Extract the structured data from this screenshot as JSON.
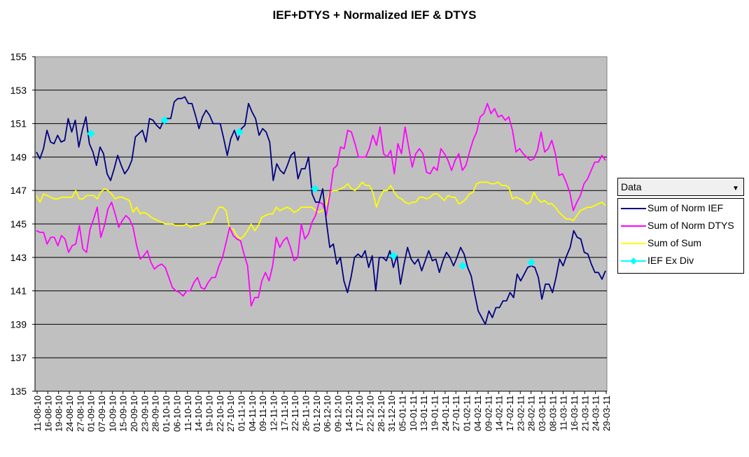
{
  "title": "IEF+DTYS + Normalized IEF & DTYS",
  "legend": {
    "dropdown_label": "Data",
    "items": [
      {
        "label": "Sum of Norm IEF",
        "color": "#000080",
        "marker": "none"
      },
      {
        "label": "Sum of Norm DTYS",
        "color": "#ff00ff",
        "marker": "none"
      },
      {
        "label": "Sum of Sum",
        "color": "#ffff00",
        "marker": "none"
      },
      {
        "label": "IEF Ex Div",
        "color": "#00ffff",
        "marker": "diamond"
      }
    ]
  },
  "chart_data": {
    "type": "line",
    "title": "IEF+DTYS + Normalized IEF & DTYS",
    "xlabel": "",
    "ylabel": "",
    "ylim": [
      135,
      155
    ],
    "yticks": [
      135,
      137,
      139,
      141,
      143,
      145,
      147,
      149,
      151,
      153,
      155
    ],
    "grid": true,
    "legend_position": "right",
    "plot_background": "#c0c0c0",
    "x_tick_labels": [
      "11-08-10",
      "16-08-10",
      "19-08-10",
      "24-08-10",
      "27-08-10",
      "01-09-10",
      "07-09-10",
      "10-09-10",
      "15-09-10",
      "20-09-10",
      "23-09-10",
      "28-09-10",
      "01-10-10",
      "06-10-10",
      "11-10-10",
      "14-10-10",
      "19-10-10",
      "22-10-10",
      "27-10-10",
      "01-11-10",
      "04-11-10",
      "09-11-10",
      "12-11-10",
      "17-11-10",
      "22-11-10",
      "26-11-10",
      "01-12-10",
      "06-12-10",
      "09-12-10",
      "14-12-10",
      "17-12-10",
      "22-12-10",
      "28-12-10",
      "31-12-10",
      "05-01-11",
      "10-01-11",
      "13-01-11",
      "19-01-11",
      "24-01-11",
      "27-01-11",
      "01-02-11",
      "04-02-11",
      "09-02-11",
      "14-02-11",
      "17-02-11",
      "23-02-11",
      "28-02-11",
      "03-03-11",
      "08-03-11",
      "11-03-11",
      "16-03-11",
      "21-03-11",
      "24-03-11",
      "29-03-11"
    ],
    "series": [
      {
        "name": "Sum of Norm IEF",
        "color": "#000080",
        "values": [
          149.3,
          148.9,
          149.5,
          150.6,
          149.9,
          149.8,
          150.3,
          149.9,
          150.0,
          151.3,
          150.5,
          151.2,
          149.6,
          150.6,
          151.4,
          149.8,
          149.3,
          148.5,
          149.6,
          149.2,
          148.0,
          147.6,
          148.3,
          149.1,
          148.5,
          148.0,
          148.3,
          148.8,
          150.2,
          150.4,
          150.6,
          149.9,
          151.3,
          151.2,
          150.9,
          150.7,
          151.2,
          151.3,
          151.3,
          152.3,
          152.5,
          152.5,
          152.6,
          152.2,
          152.2,
          151.5,
          150.7,
          151.4,
          151.8,
          151.5,
          151.0,
          151.0,
          151.0,
          150.1,
          149.1,
          150.1,
          150.6,
          150.0,
          150.7,
          150.9,
          152.2,
          151.7,
          151.3,
          150.3,
          150.7,
          150.5,
          149.9,
          147.6,
          148.6,
          148.2,
          148.0,
          148.5,
          149.1,
          149.3,
          147.7,
          148.3,
          148.3,
          149.0,
          146.8,
          146.3,
          146.3,
          147.1,
          145.2,
          143.6,
          143.8,
          142.6,
          143.0,
          141.6,
          140.9,
          141.8,
          143.0,
          143.2,
          143.0,
          143.4,
          142.4,
          143.1,
          141.0,
          143.0,
          143.0,
          142.8,
          143.4,
          142.4,
          143.1,
          141.4,
          142.6,
          143.6,
          142.9,
          142.6,
          142.9,
          142.2,
          142.8,
          143.4,
          142.8,
          142.9,
          142.1,
          142.8,
          143.3,
          143.0,
          142.5,
          143.0,
          143.6,
          143.2,
          142.4,
          141.9,
          140.8,
          139.8,
          139.4,
          139.0,
          139.8,
          139.4,
          140.0,
          140.0,
          140.4,
          140.4,
          140.9,
          140.6,
          142.0,
          141.6,
          142.0,
          142.4,
          142.5,
          142.4,
          141.8,
          140.5,
          141.4,
          141.4,
          140.9,
          141.8,
          142.9,
          142.5,
          143.1,
          143.6,
          144.6,
          144.2,
          144.1,
          143.3,
          143.2,
          142.6,
          142.1,
          142.1,
          141.7,
          142.2
        ]
      },
      {
        "name": "Sum of Norm DTYS",
        "color": "#ff00ff",
        "values": [
          144.6,
          144.5,
          144.5,
          143.8,
          144.2,
          144.2,
          143.7,
          144.3,
          144.1,
          143.3,
          143.7,
          143.8,
          144.9,
          143.5,
          143.3,
          144.7,
          145.3,
          146.0,
          144.2,
          144.9,
          145.9,
          146.3,
          145.6,
          144.8,
          145.2,
          145.5,
          145.3,
          144.8,
          143.7,
          142.9,
          143.1,
          143.4,
          142.7,
          142.3,
          142.5,
          142.6,
          142.4,
          141.8,
          141.2,
          141.0,
          140.9,
          140.7,
          141.0,
          141.0,
          141.5,
          141.8,
          141.2,
          141.1,
          141.5,
          141.8,
          141.8,
          142.5,
          143.0,
          143.9,
          144.8,
          144.3,
          144.1,
          144.0,
          143.2,
          142.5,
          140.1,
          140.6,
          140.6,
          141.6,
          142.1,
          141.6,
          142.5,
          144.2,
          143.6,
          144.0,
          144.2,
          143.6,
          142.8,
          143.0,
          145.0,
          144.1,
          144.4,
          145.1,
          145.5,
          146.3,
          146.2,
          145.5,
          146.8,
          148.3,
          148.5,
          149.6,
          149.5,
          150.6,
          150.5,
          149.8,
          149.0,
          149.0,
          149.0,
          149.5,
          150.3,
          149.7,
          150.8,
          149.2,
          149.0,
          149.4,
          148.0,
          149.8,
          149.2,
          150.8,
          149.6,
          148.4,
          149.2,
          149.5,
          149.2,
          148.1,
          148.0,
          148.4,
          148.2,
          149.5,
          149.2,
          148.8,
          148.2,
          148.8,
          149.2,
          148.2,
          148.5,
          149.3,
          150.0,
          150.5,
          151.4,
          151.6,
          152.2,
          151.6,
          151.9,
          151.4,
          151.5,
          151.2,
          151.4,
          150.6,
          149.3,
          149.5,
          149.2,
          149.0,
          148.8,
          148.9,
          149.4,
          150.5,
          149.3,
          149.5,
          150.0,
          149.2,
          147.9,
          148.0,
          147.5,
          146.9,
          145.8,
          146.3,
          146.7,
          147.4,
          147.7,
          148.2,
          148.7,
          148.7,
          149.1,
          148.8
        ]
      },
      {
        "name": "Sum of Sum",
        "color": "#ffff00",
        "values": [
          146.7,
          146.3,
          146.8,
          146.7,
          146.6,
          146.5,
          146.5,
          146.6,
          146.6,
          146.6,
          146.6,
          147.0,
          146.5,
          146.5,
          146.7,
          146.7,
          146.7,
          146.5,
          146.9,
          147.1,
          147.0,
          146.8,
          146.5,
          146.6,
          146.6,
          146.5,
          146.4,
          145.7,
          146.0,
          145.6,
          145.7,
          145.6,
          145.4,
          145.3,
          145.2,
          145.1,
          145.0,
          145.0,
          145.0,
          144.9,
          144.9,
          144.9,
          145.0,
          144.8,
          144.9,
          144.9,
          145.0,
          145.0,
          145.1,
          145.1,
          145.6,
          146.0,
          146.0,
          145.8,
          144.7,
          144.7,
          144.3,
          144.1,
          144.3,
          144.6,
          145.0,
          144.6,
          144.9,
          145.4,
          145.5,
          145.6,
          145.6,
          146.0,
          145.8,
          145.9,
          146.0,
          145.9,
          145.7,
          145.8,
          146.0,
          146.0,
          146.0,
          146.0,
          145.8,
          145.7,
          145.8,
          146.2,
          146.9,
          147.0,
          147.0,
          147.1,
          147.2,
          147.4,
          147.1,
          147.0,
          147.2,
          147.5,
          147.3,
          147.3,
          146.9,
          146.0,
          146.6,
          147.0,
          147.0,
          147.3,
          146.9,
          146.6,
          146.5,
          146.3,
          146.2,
          146.3,
          146.3,
          146.6,
          146.6,
          146.5,
          146.6,
          146.8,
          146.8,
          146.6,
          146.4,
          146.7,
          146.6,
          146.6,
          146.2,
          146.3,
          146.5,
          146.8,
          146.9,
          147.4,
          147.5,
          147.5,
          147.5,
          147.4,
          147.4,
          147.5,
          147.3,
          147.3,
          147.2,
          146.5,
          146.6,
          146.5,
          146.4,
          146.2,
          146.3,
          146.9,
          146.5,
          146.3,
          146.4,
          146.2,
          146.2,
          146.0,
          145.7,
          145.5,
          145.3,
          145.3,
          145.2,
          145.5,
          145.8,
          145.9,
          146.0,
          146.0,
          146.1,
          146.2,
          146.3,
          146.1
        ]
      },
      {
        "name": "IEF Ex Div",
        "color": "#00ffff",
        "marker": "diamond",
        "points": [
          {
            "x": "01-09-10",
            "y": 150.4
          },
          {
            "x": "01-10-10",
            "y": 151.2
          },
          {
            "x": "01-11-10",
            "y": 150.5
          },
          {
            "x": "01-12-10",
            "y": 147.1
          },
          {
            "x": "03-01-11",
            "y": 143.1
          },
          {
            "x": "01-02-11",
            "y": 142.5
          },
          {
            "x": "01-03-11",
            "y": 142.7
          }
        ]
      }
    ]
  }
}
